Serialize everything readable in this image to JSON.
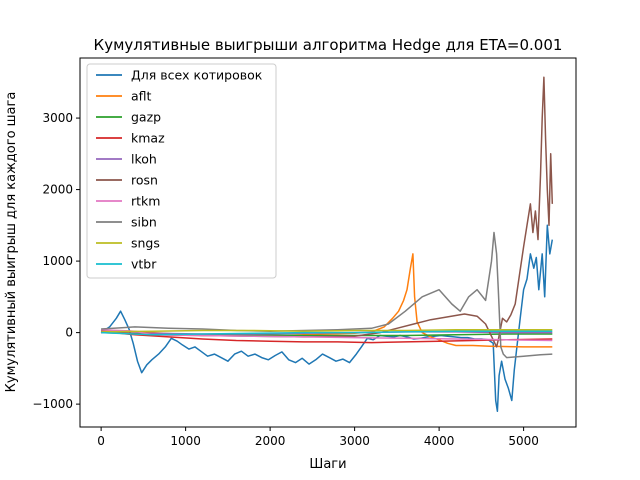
{
  "chart_data": {
    "type": "line",
    "title": "Кумулятивные выигрыши алгоритма Hedge для ETA=0.001",
    "xlabel": "Шаги",
    "ylabel": "Кумулятивный выигрыш для каждого шага",
    "xlim": [
      -250,
      5620
    ],
    "ylim": [
      -1320,
      3840
    ],
    "xticks": [
      0,
      1000,
      2000,
      3000,
      4000,
      5000
    ],
    "yticks": [
      -1000,
      0,
      1000,
      2000,
      3000
    ],
    "legend_position": "top-left",
    "grid": false,
    "series": [
      {
        "name": "Для всех котировок",
        "color": "#1f77b4",
        "points": [
          [
            0,
            0
          ],
          [
            100,
            80
          ],
          [
            180,
            200
          ],
          [
            230,
            300
          ],
          [
            280,
            180
          ],
          [
            330,
            50
          ],
          [
            380,
            -150
          ],
          [
            430,
            -400
          ],
          [
            480,
            -560
          ],
          [
            540,
            -450
          ],
          [
            600,
            -380
          ],
          [
            680,
            -300
          ],
          [
            760,
            -200
          ],
          [
            830,
            -80
          ],
          [
            900,
            -120
          ],
          [
            960,
            -170
          ],
          [
            1040,
            -230
          ],
          [
            1110,
            -200
          ],
          [
            1180,
            -260
          ],
          [
            1260,
            -330
          ],
          [
            1340,
            -300
          ],
          [
            1420,
            -350
          ],
          [
            1500,
            -400
          ],
          [
            1580,
            -300
          ],
          [
            1660,
            -260
          ],
          [
            1740,
            -330
          ],
          [
            1820,
            -300
          ],
          [
            1900,
            -350
          ],
          [
            1980,
            -380
          ],
          [
            2060,
            -320
          ],
          [
            2140,
            -270
          ],
          [
            2220,
            -380
          ],
          [
            2300,
            -420
          ],
          [
            2380,
            -360
          ],
          [
            2460,
            -440
          ],
          [
            2540,
            -380
          ],
          [
            2620,
            -300
          ],
          [
            2700,
            -350
          ],
          [
            2780,
            -400
          ],
          [
            2860,
            -370
          ],
          [
            2940,
            -420
          ],
          [
            3020,
            -300
          ],
          [
            3080,
            -200
          ],
          [
            3150,
            -80
          ],
          [
            3220,
            -100
          ],
          [
            3300,
            -40
          ],
          [
            3380,
            -50
          ],
          [
            3460,
            -60
          ],
          [
            3540,
            -40
          ],
          [
            3620,
            -60
          ],
          [
            3700,
            -90
          ],
          [
            3780,
            -80
          ],
          [
            3860,
            -60
          ],
          [
            3940,
            -50
          ],
          [
            4020,
            -40
          ],
          [
            4100,
            -50
          ],
          [
            4180,
            -60
          ],
          [
            4260,
            -70
          ],
          [
            4340,
            -70
          ],
          [
            4420,
            -90
          ],
          [
            4500,
            -90
          ],
          [
            4580,
            -100
          ],
          [
            4640,
            -150
          ],
          [
            4670,
            -950
          ],
          [
            4690,
            -1100
          ],
          [
            4710,
            -600
          ],
          [
            4740,
            -400
          ],
          [
            4780,
            -650
          ],
          [
            4820,
            -780
          ],
          [
            4860,
            -950
          ],
          [
            4890,
            -520
          ],
          [
            4920,
            -200
          ],
          [
            4960,
            200
          ],
          [
            5000,
            600
          ],
          [
            5040,
            750
          ],
          [
            5080,
            1100
          ],
          [
            5120,
            900
          ],
          [
            5150,
            1050
          ],
          [
            5180,
            600
          ],
          [
            5220,
            1100
          ],
          [
            5250,
            500
          ],
          [
            5280,
            1500
          ],
          [
            5310,
            1100
          ],
          [
            5340,
            1300
          ]
        ]
      },
      {
        "name": "aflt",
        "color": "#ff7f0e",
        "points": [
          [
            0,
            30
          ],
          [
            300,
            25
          ],
          [
            600,
            0
          ],
          [
            900,
            -20
          ],
          [
            1200,
            -40
          ],
          [
            1500,
            -30
          ],
          [
            1800,
            -20
          ],
          [
            2100,
            -40
          ],
          [
            2400,
            -30
          ],
          [
            2700,
            -20
          ],
          [
            3000,
            -10
          ],
          [
            3200,
            10
          ],
          [
            3350,
            80
          ],
          [
            3450,
            200
          ],
          [
            3520,
            300
          ],
          [
            3580,
            450
          ],
          [
            3620,
            600
          ],
          [
            3660,
            900
          ],
          [
            3690,
            1100
          ],
          [
            3710,
            500
          ],
          [
            3740,
            150
          ],
          [
            3800,
            0
          ],
          [
            3900,
            -60
          ],
          [
            4000,
            -100
          ],
          [
            4100,
            -150
          ],
          [
            4200,
            -180
          ],
          [
            4400,
            -180
          ],
          [
            4600,
            -190
          ],
          [
            5000,
            -200
          ],
          [
            5340,
            -200
          ]
        ]
      },
      {
        "name": "gazp",
        "color": "#2ca02c",
        "points": [
          [
            0,
            0
          ],
          [
            600,
            -20
          ],
          [
            1200,
            -30
          ],
          [
            1800,
            -30
          ],
          [
            2400,
            -40
          ],
          [
            3000,
            -40
          ],
          [
            3600,
            -40
          ],
          [
            4200,
            -30
          ],
          [
            4800,
            -20
          ],
          [
            5340,
            -20
          ]
        ]
      },
      {
        "name": "kmaz",
        "color": "#d62728",
        "points": [
          [
            0,
            20
          ],
          [
            400,
            -30
          ],
          [
            800,
            -60
          ],
          [
            1200,
            -90
          ],
          [
            1600,
            -110
          ],
          [
            2000,
            -120
          ],
          [
            2400,
            -130
          ],
          [
            2800,
            -130
          ],
          [
            3200,
            -140
          ],
          [
            3600,
            -130
          ],
          [
            4000,
            -120
          ],
          [
            4400,
            -110
          ],
          [
            4800,
            -100
          ],
          [
            5340,
            -90
          ]
        ]
      },
      {
        "name": "lkoh",
        "color": "#9467bd",
        "points": [
          [
            0,
            0
          ],
          [
            600,
            -10
          ],
          [
            1200,
            -20
          ],
          [
            1800,
            -20
          ],
          [
            2400,
            -10
          ],
          [
            3000,
            0
          ],
          [
            3600,
            10
          ],
          [
            4200,
            10
          ],
          [
            4800,
            0
          ],
          [
            5340,
            0
          ]
        ]
      },
      {
        "name": "rosn",
        "color": "#8c564b",
        "points": [
          [
            0,
            20
          ],
          [
            600,
            -30
          ],
          [
            1200,
            -40
          ],
          [
            1800,
            -50
          ],
          [
            2400,
            -60
          ],
          [
            3000,
            -50
          ],
          [
            3300,
            0
          ],
          [
            3500,
            60
          ],
          [
            3700,
            120
          ],
          [
            3900,
            180
          ],
          [
            4100,
            220
          ],
          [
            4300,
            260
          ],
          [
            4450,
            230
          ],
          [
            4550,
            120
          ],
          [
            4640,
            -100
          ],
          [
            4680,
            -200
          ],
          [
            4700,
            -100
          ],
          [
            4750,
            200
          ],
          [
            4800,
            150
          ],
          [
            4850,
            250
          ],
          [
            4900,
            400
          ],
          [
            4950,
            800
          ],
          [
            5000,
            1200
          ],
          [
            5040,
            1500
          ],
          [
            5080,
            1800
          ],
          [
            5110,
            1400
          ],
          [
            5140,
            1700
          ],
          [
            5170,
            1300
          ],
          [
            5200,
            2200
          ],
          [
            5220,
            3000
          ],
          [
            5240,
            3570
          ],
          [
            5260,
            2700
          ],
          [
            5280,
            2000
          ],
          [
            5300,
            1500
          ],
          [
            5320,
            2500
          ],
          [
            5340,
            1800
          ]
        ]
      },
      {
        "name": "rtkm",
        "color": "#e377c2",
        "points": [
          [
            0,
            40
          ],
          [
            200,
            30
          ],
          [
            400,
            20
          ],
          [
            600,
            -30
          ],
          [
            1200,
            -40
          ],
          [
            1800,
            -50
          ],
          [
            2400,
            -60
          ],
          [
            3000,
            -70
          ],
          [
            3600,
            -80
          ],
          [
            4200,
            -90
          ],
          [
            4800,
            -100
          ],
          [
            5340,
            -110
          ]
        ]
      },
      {
        "name": "sibn",
        "color": "#7f7f7f",
        "points": [
          [
            0,
            50
          ],
          [
            400,
            80
          ],
          [
            800,
            60
          ],
          [
            1200,
            50
          ],
          [
            1600,
            30
          ],
          [
            2000,
            20
          ],
          [
            2400,
            30
          ],
          [
            2800,
            40
          ],
          [
            3200,
            60
          ],
          [
            3400,
            120
          ],
          [
            3600,
            300
          ],
          [
            3800,
            500
          ],
          [
            4000,
            600
          ],
          [
            4150,
            400
          ],
          [
            4250,
            300
          ],
          [
            4350,
            500
          ],
          [
            4450,
            600
          ],
          [
            4550,
            450
          ],
          [
            4620,
            1000
          ],
          [
            4650,
            1400
          ],
          [
            4680,
            1100
          ],
          [
            4700,
            600
          ],
          [
            4730,
            -200
          ],
          [
            4760,
            -300
          ],
          [
            4800,
            -350
          ],
          [
            5000,
            -330
          ],
          [
            5200,
            -310
          ],
          [
            5340,
            -300
          ]
        ]
      },
      {
        "name": "sngs",
        "color": "#bcbd22",
        "points": [
          [
            0,
            10
          ],
          [
            600,
            20
          ],
          [
            1200,
            30
          ],
          [
            1800,
            30
          ],
          [
            2400,
            20
          ],
          [
            3000,
            30
          ],
          [
            3600,
            30
          ],
          [
            4200,
            40
          ],
          [
            4800,
            40
          ],
          [
            5340,
            40
          ]
        ]
      },
      {
        "name": "vtbr",
        "color": "#17becf",
        "points": [
          [
            0,
            0
          ],
          [
            600,
            -30
          ],
          [
            1200,
            -20
          ],
          [
            1800,
            -10
          ],
          [
            2400,
            0
          ],
          [
            3000,
            0
          ],
          [
            3600,
            10
          ],
          [
            4200,
            20
          ],
          [
            4800,
            20
          ],
          [
            5340,
            20
          ]
        ]
      }
    ]
  }
}
